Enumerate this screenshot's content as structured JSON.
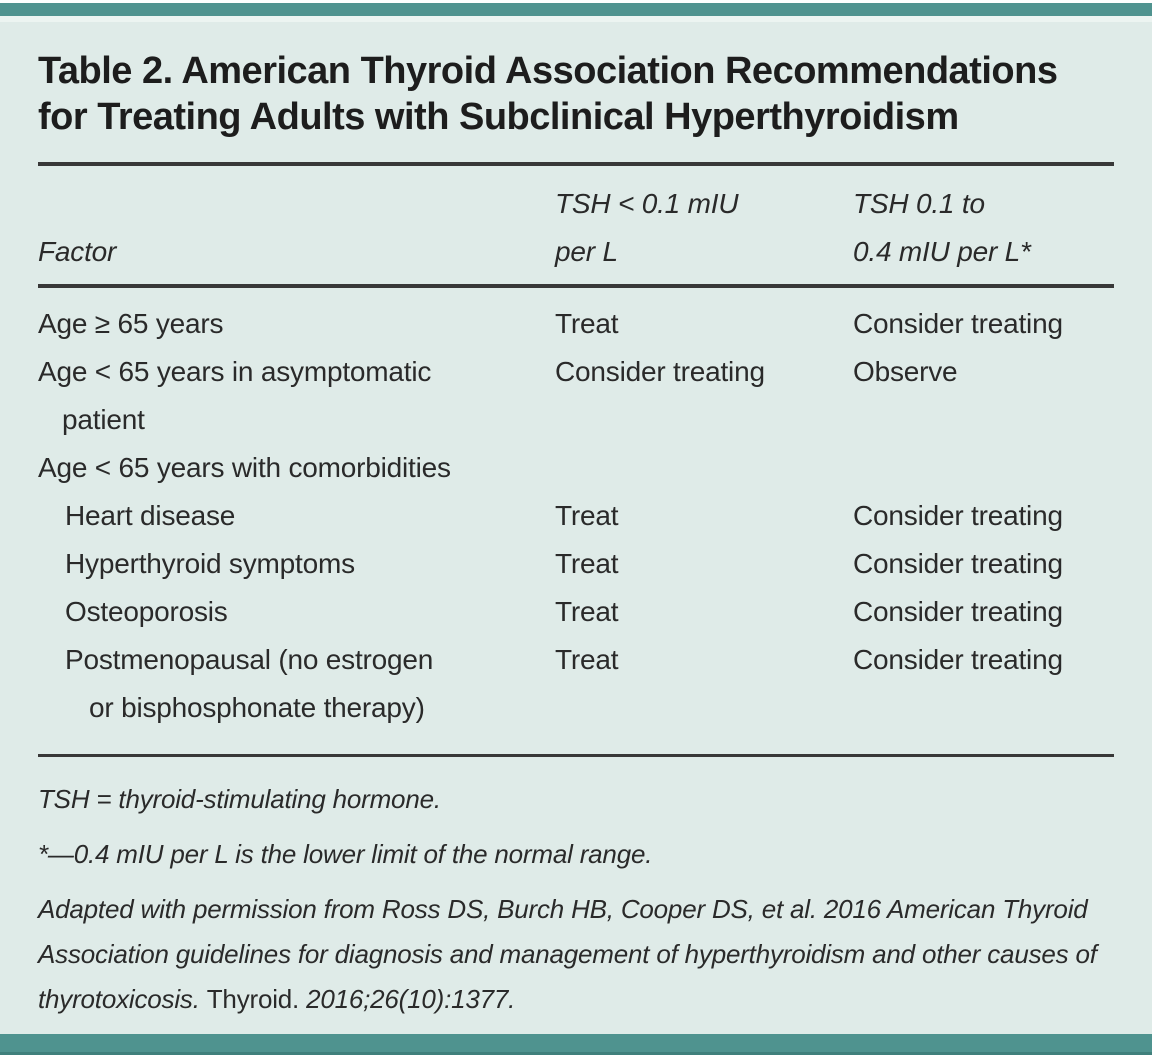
{
  "colors": {
    "teal_bar": "#4f938f",
    "panel_background": "#dfebe8",
    "rule": "#383838",
    "text": "#2a2a2a"
  },
  "title": {
    "line1": "Table 2. American Thyroid Association Recommendations",
    "line2": "for Treating Adults with Subclinical Hyperthyroidism"
  },
  "table": {
    "header": {
      "factor": "Factor",
      "col1_line1": "TSH < 0.1 mIU",
      "col1_line2": "per L",
      "col2_line1": "TSH 0.1 to",
      "col2_line2": "0.4 mIU per L*"
    },
    "rows": [
      {
        "factor_line1": "Age ≥ 65 years",
        "factor_line2": "",
        "col1": "Treat",
        "col2": "Consider treating"
      },
      {
        "factor_line1": "Age < 65 years in asymptomatic",
        "factor_line2": "patient",
        "col1": "Consider treating",
        "col2": "Observe"
      },
      {
        "factor_line1": "Age < 65 years with comorbidities",
        "factor_line2": "",
        "col1": "",
        "col2": ""
      },
      {
        "factor_line1": "Heart disease",
        "factor_line2": "",
        "col1": "Treat",
        "col2": "Consider treating"
      },
      {
        "factor_line1": "Hyperthyroid symptoms",
        "factor_line2": "",
        "col1": "Treat",
        "col2": "Consider treating"
      },
      {
        "factor_line1": "Osteoporosis",
        "factor_line2": "",
        "col1": "Treat",
        "col2": "Consider treating"
      },
      {
        "factor_line1": "Postmenopausal (no estrogen",
        "factor_line2": "or bisphosphonate therapy)",
        "col1": "Treat",
        "col2": "Consider treating"
      }
    ]
  },
  "footnotes": {
    "abbreviation": "TSH = thyroid-stimulating hormone.",
    "asterisk": "*—0.4 mIU per L is the lower limit of the normal range.",
    "citation_prefix": "Adapted with permission from Ross DS, Burch HB, Cooper DS, et al. 2016 American Thyroid Association guidelines for diagnosis and management of hyperthyroidism and other causes of thyrotoxicosis. ",
    "citation_journal": "Thyroid.",
    "citation_suffix": " 2016;26(10):1377."
  }
}
